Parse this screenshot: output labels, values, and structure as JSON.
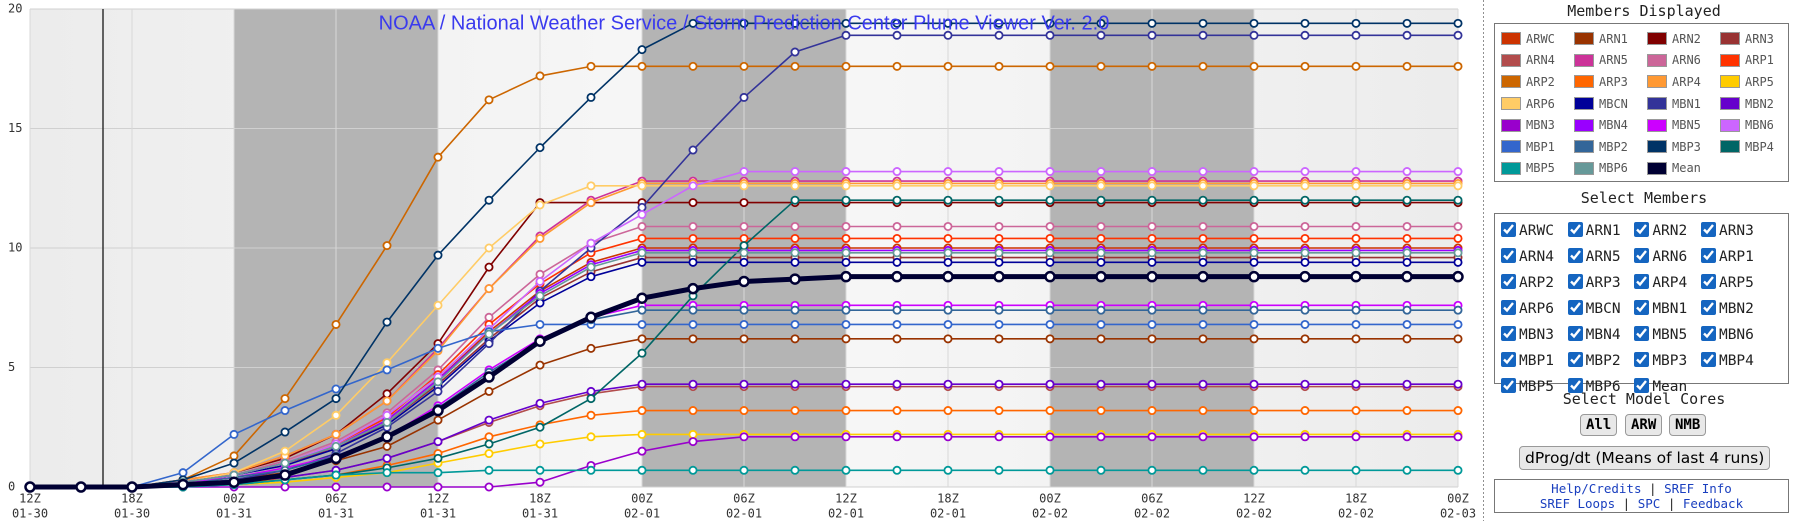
{
  "chart_data": {
    "type": "line",
    "title": "NOAA / National Weather Service / Storm Prediction Center Plume Viewer Ver. 2.0",
    "categories": [
      {
        "hour": "12Z",
        "date": "01-30"
      },
      null,
      {
        "hour": "18Z",
        "date": "01-30"
      },
      null,
      {
        "hour": "00Z",
        "date": "01-31"
      },
      null,
      {
        "hour": "06Z",
        "date": "01-31"
      },
      null,
      {
        "hour": "12Z",
        "date": "01-31"
      },
      null,
      {
        "hour": "18Z",
        "date": "01-31"
      },
      null,
      {
        "hour": "00Z",
        "date": "02-01"
      },
      null,
      {
        "hour": "06Z",
        "date": "02-01"
      },
      null,
      {
        "hour": "12Z",
        "date": "02-01"
      },
      null,
      {
        "hour": "18Z",
        "date": "02-01"
      },
      null,
      {
        "hour": "00Z",
        "date": "02-02"
      },
      null,
      {
        "hour": "06Z",
        "date": "02-02"
      },
      null,
      {
        "hour": "12Z",
        "date": "02-02"
      },
      null,
      {
        "hour": "18Z",
        "date": "02-02"
      },
      null,
      {
        "hour": "00Z",
        "date": "02-03"
      }
    ],
    "ylim": [
      0,
      20
    ],
    "yticks": [
      0,
      5,
      10,
      15,
      20
    ],
    "grid": true,
    "series": [
      {
        "name": "ARWC",
        "color": "#cc3300",
        "values": [
          0,
          0,
          0,
          0.2,
          0.5,
          1,
          1.7,
          2.8,
          4.5,
          6.5,
          8.2,
          9.4,
          10,
          10,
          10,
          10,
          10,
          10,
          10,
          10,
          10,
          10,
          10,
          10,
          10,
          10,
          10,
          10,
          10
        ]
      },
      {
        "name": "ARN1",
        "color": "#993300",
        "values": [
          0,
          0,
          0,
          0.1,
          0.3,
          0.6,
          1.1,
          1.7,
          2.8,
          4.0,
          5.1,
          5.8,
          6.2,
          6.2,
          6.2,
          6.2,
          6.2,
          6.2,
          6.2,
          6.2,
          6.2,
          6.2,
          6.2,
          6.2,
          6.2,
          6.2,
          6.2,
          6.2,
          6.2
        ]
      },
      {
        "name": "ARN2",
        "color": "#800000",
        "values": [
          0,
          0,
          0,
          0.2,
          0.6,
          1.2,
          2.2,
          3.9,
          6.0,
          9.2,
          11.9,
          11.9,
          11.9,
          11.9,
          11.9,
          11.9,
          11.9,
          11.9,
          11.9,
          11.9,
          11.9,
          11.9,
          11.9,
          11.9,
          11.9,
          11.9,
          11.9,
          11.9,
          11.9
        ]
      },
      {
        "name": "ARN3",
        "color": "#993333",
        "values": [
          0,
          0,
          0,
          0.2,
          0.5,
          1,
          1.6,
          2.7,
          4.3,
          6.2,
          7.9,
          9.0,
          9.6,
          9.6,
          9.6,
          9.6,
          9.6,
          9.6,
          9.6,
          9.6,
          9.6,
          9.6,
          9.6,
          9.6,
          9.6,
          9.6,
          9.6,
          9.6,
          9.6
        ]
      },
      {
        "name": "ARN4",
        "color": "#b24c4c",
        "values": [
          0,
          0,
          0,
          0.1,
          0.2,
          0.4,
          0.7,
          1.2,
          1.9,
          2.7,
          3.4,
          3.9,
          4.2,
          4.2,
          4.2,
          4.2,
          4.2,
          4.2,
          4.2,
          4.2,
          4.2,
          4.2,
          4.2,
          4.2,
          4.2,
          4.2,
          4.2,
          4.2,
          4.2
        ]
      },
      {
        "name": "ARN5",
        "color": "#cc3399",
        "values": [
          0,
          0,
          0,
          0.3,
          0.6,
          1.3,
          2.2,
          3.6,
          5.8,
          8.3,
          10.5,
          12.0,
          12.8,
          12.8,
          12.8,
          12.8,
          12.8,
          12.8,
          12.8,
          12.8,
          12.8,
          12.8,
          12.8,
          12.8,
          12.8,
          12.8,
          12.8,
          12.8,
          12.8
        ]
      },
      {
        "name": "ARN6",
        "color": "#cc6699",
        "values": [
          0,
          0,
          0,
          0.2,
          0.5,
          1.1,
          1.9,
          3.1,
          4.9,
          7.1,
          8.9,
          10.2,
          10.9,
          10.9,
          10.9,
          10.9,
          10.9,
          10.9,
          10.9,
          10.9,
          10.9,
          10.9,
          10.9,
          10.9,
          10.9,
          10.9,
          10.9,
          10.9,
          10.9
        ]
      },
      {
        "name": "ARP1",
        "color": "#ff3300",
        "values": [
          0,
          0,
          0,
          0.2,
          0.5,
          1.0,
          1.8,
          2.9,
          4.7,
          6.8,
          8.5,
          9.8,
          10.4,
          10.4,
          10.4,
          10.4,
          10.4,
          10.4,
          10.4,
          10.4,
          10.4,
          10.4,
          10.4,
          10.4,
          10.4,
          10.4,
          10.4,
          10.4,
          10.4
        ]
      },
      {
        "name": "ARP2",
        "color": "#cc6600",
        "values": [
          0,
          0,
          0,
          0.3,
          1.3,
          3.7,
          6.8,
          10.1,
          13.8,
          16.2,
          17.2,
          17.6,
          17.6,
          17.6,
          17.6,
          17.6,
          17.6,
          17.6,
          17.6,
          17.6,
          17.6,
          17.6,
          17.6,
          17.6,
          17.6,
          17.6,
          17.6,
          17.6,
          17.6
        ]
      },
      {
        "name": "ARP3",
        "color": "#ff6600",
        "values": [
          0,
          0,
          0,
          0.1,
          0.2,
          0.3,
          0.5,
          0.9,
          1.4,
          2.1,
          2.6,
          3.0,
          3.2,
          3.2,
          3.2,
          3.2,
          3.2,
          3.2,
          3.2,
          3.2,
          3.2,
          3.2,
          3.2,
          3.2,
          3.2,
          3.2,
          3.2,
          3.2,
          3.2
        ]
      },
      {
        "name": "ARP4",
        "color": "#ff9933",
        "values": [
          0,
          0,
          0,
          0.3,
          0.6,
          1.3,
          2.2,
          3.6,
          5.7,
          8.3,
          10.4,
          11.9,
          12.7,
          12.7,
          12.7,
          12.7,
          12.7,
          12.7,
          12.7,
          12.7,
          12.7,
          12.7,
          12.7,
          12.7,
          12.7,
          12.7,
          12.7,
          12.7,
          12.7
        ]
      },
      {
        "name": "ARP5",
        "color": "#ffcc00",
        "values": [
          0,
          0,
          0,
          0,
          0.1,
          0.2,
          0.4,
          0.6,
          1.0,
          1.4,
          1.8,
          2.1,
          2.2,
          2.2,
          2.2,
          2.2,
          2.2,
          2.2,
          2.2,
          2.2,
          2.2,
          2.2,
          2.2,
          2.2,
          2.2,
          2.2,
          2.2,
          2.2,
          2.2
        ]
      },
      {
        "name": "ARP6",
        "color": "#ffcc66",
        "values": [
          0,
          0,
          0,
          0.2,
          0.6,
          1.5,
          3,
          5.2,
          7.6,
          10.0,
          11.8,
          12.6,
          12.6,
          12.6,
          12.6,
          12.6,
          12.6,
          12.6,
          12.6,
          12.6,
          12.6,
          12.6,
          12.6,
          12.6,
          12.6,
          12.6,
          12.6,
          12.6,
          12.6
        ]
      },
      {
        "name": "MBCN",
        "color": "#000099",
        "values": [
          0,
          0,
          0,
          0.2,
          0.5,
          0.9,
          1.6,
          2.6,
          4.2,
          6.1,
          7.7,
          8.8,
          9.4,
          9.4,
          9.4,
          9.4,
          9.4,
          9.4,
          9.4,
          9.4,
          9.4,
          9.4,
          9.4,
          9.4,
          9.4,
          9.4,
          9.4,
          9.4,
          9.4
        ]
      },
      {
        "name": "MBN1",
        "color": "#333399",
        "values": [
          0,
          0,
          0,
          0.1,
          0.3,
          0.7,
          1.4,
          2.5,
          4.0,
          6.0,
          8.2,
          10.0,
          11.7,
          14.1,
          16.3,
          18.2,
          18.9,
          18.9,
          18.9,
          18.9,
          18.9,
          18.9,
          18.9,
          18.9,
          18.9,
          18.9,
          18.9,
          18.9,
          18.9
        ]
      },
      {
        "name": "MBN2",
        "color": "#6600cc",
        "values": [
          0,
          0,
          0,
          0.1,
          0.2,
          0.4,
          0.7,
          1.2,
          1.9,
          2.8,
          3.5,
          4.0,
          4.3,
          4.3,
          4.3,
          4.3,
          4.3,
          4.3,
          4.3,
          4.3,
          4.3,
          4.3,
          4.3,
          4.3,
          4.3,
          4.3,
          4.3,
          4.3,
          4.3
        ]
      },
      {
        "name": "MBN3",
        "color": "#9900cc",
        "values": [
          0,
          0,
          0,
          0,
          0,
          0,
          0,
          0,
          0,
          0,
          0.2,
          0.9,
          1.5,
          1.9,
          2.1,
          2.1,
          2.1,
          2.1,
          2.1,
          2.1,
          2.1,
          2.1,
          2.1,
          2.1,
          2.1,
          2.1,
          2.1,
          2.1,
          2.1
        ]
      },
      {
        "name": "MBN4",
        "color": "#9900ff",
        "values": [
          0,
          0,
          0,
          0.2,
          0.5,
          1.0,
          1.7,
          2.8,
          4.5,
          6.4,
          8.1,
          9.3,
          9.9,
          9.9,
          9.9,
          9.9,
          9.9,
          9.9,
          9.9,
          9.9,
          9.9,
          9.9,
          9.9,
          9.9,
          9.9,
          9.9,
          9.9,
          9.9,
          9.9
        ]
      },
      {
        "name": "MBN5",
        "color": "#cc00ff",
        "values": [
          0,
          0,
          0,
          0.2,
          0.4,
          0.8,
          1.3,
          2.1,
          3.4,
          4.9,
          6.2,
          7.1,
          7.6,
          7.6,
          7.6,
          7.6,
          7.6,
          7.6,
          7.6,
          7.6,
          7.6,
          7.6,
          7.6,
          7.6,
          7.6,
          7.6,
          7.6,
          7.6,
          7.6
        ]
      },
      {
        "name": "MBN6",
        "color": "#cc66ff",
        "values": [
          0,
          0,
          0,
          0.2,
          0.5,
          1.0,
          1.8,
          3.0,
          4.6,
          6.6,
          8.6,
          10.2,
          11.4,
          12.6,
          13.2,
          13.2,
          13.2,
          13.2,
          13.2,
          13.2,
          13.2,
          13.2,
          13.2,
          13.2,
          13.2,
          13.2,
          13.2,
          13.2,
          13.2
        ]
      },
      {
        "name": "MBP1",
        "color": "#3366cc",
        "values": [
          0,
          0,
          0,
          0.6,
          2.2,
          3.2,
          4.1,
          4.9,
          5.8,
          6.5,
          6.8,
          6.8,
          6.8,
          6.8,
          6.8,
          6.8,
          6.8,
          6.8,
          6.8,
          6.8,
          6.8,
          6.8,
          6.8,
          6.8,
          6.8,
          6.8,
          6.8,
          6.8,
          6.8
        ]
      },
      {
        "name": "MBP2",
        "color": "#336699",
        "values": [
          0,
          0,
          0,
          0.1,
          0.4,
          0.7,
          1.3,
          2.1,
          3.3,
          4.8,
          6.1,
          7.0,
          7.4,
          7.4,
          7.4,
          7.4,
          7.4,
          7.4,
          7.4,
          7.4,
          7.4,
          7.4,
          7.4,
          7.4,
          7.4,
          7.4,
          7.4,
          7.4,
          7.4
        ]
      },
      {
        "name": "MBP3",
        "color": "#003366",
        "values": [
          0,
          0,
          0,
          0.3,
          1.0,
          2.3,
          3.7,
          6.9,
          9.7,
          12.0,
          14.2,
          16.3,
          18.3,
          19.4,
          19.4,
          19.4,
          19.4,
          19.4,
          19.4,
          19.4,
          19.4,
          19.4,
          19.4,
          19.4,
          19.4,
          19.4,
          19.4,
          19.4,
          19.4
        ]
      },
      {
        "name": "MBP4",
        "color": "#006666",
        "values": [
          0,
          0,
          0,
          0,
          0.1,
          0.3,
          0.5,
          0.8,
          1.2,
          1.8,
          2.5,
          3.7,
          5.6,
          8.0,
          10.1,
          12.0,
          12.0,
          12.0,
          12.0,
          12.0,
          12.0,
          12.0,
          12.0,
          12.0,
          12.0,
          12.0,
          12.0,
          12.0,
          12.0
        ]
      },
      {
        "name": "MBP5",
        "color": "#009999",
        "values": [
          0,
          0,
          0,
          0,
          0.1,
          0.3,
          0.5,
          0.6,
          0.6,
          0.7,
          0.7,
          0.7,
          0.7,
          0.7,
          0.7,
          0.7,
          0.7,
          0.7,
          0.7,
          0.7,
          0.7,
          0.7,
          0.7,
          0.7,
          0.7,
          0.7,
          0.7,
          0.7,
          0.7
        ]
      },
      {
        "name": "MBP6",
        "color": "#669999",
        "values": [
          0,
          0,
          0,
          0.2,
          0.5,
          1,
          1.7,
          2.7,
          4.4,
          6.4,
          8.0,
          9.2,
          9.8,
          9.8,
          9.8,
          9.8,
          9.8,
          9.8,
          9.8,
          9.8,
          9.8,
          9.8,
          9.8,
          9.8,
          9.8,
          9.8,
          9.8,
          9.8,
          9.8
        ]
      },
      {
        "name": "Mean",
        "color": "#000033",
        "width": 5,
        "values": [
          0,
          0,
          0,
          0.1,
          0.2,
          0.5,
          1.2,
          2.1,
          3.2,
          4.6,
          6.1,
          7.1,
          7.9,
          8.3,
          8.6,
          8.7,
          8.8,
          8.8,
          8.8,
          8.8,
          8.8,
          8.8,
          8.8,
          8.8,
          8.8,
          8.8,
          8.8,
          8.8,
          8.8
        ]
      }
    ]
  },
  "panel": {
    "members_title": "Members Displayed",
    "select_title": "Select Members",
    "cores_title": "Select Model Cores",
    "core_buttons": [
      "All",
      "ARW",
      "NMB"
    ],
    "dprog_button": "dProg/dt (Means of last 4 runs)",
    "links": [
      "Help/Credits",
      "|",
      "SREF Info",
      "SREF Loops",
      "|",
      "SPC",
      "|",
      "Feedback"
    ]
  }
}
